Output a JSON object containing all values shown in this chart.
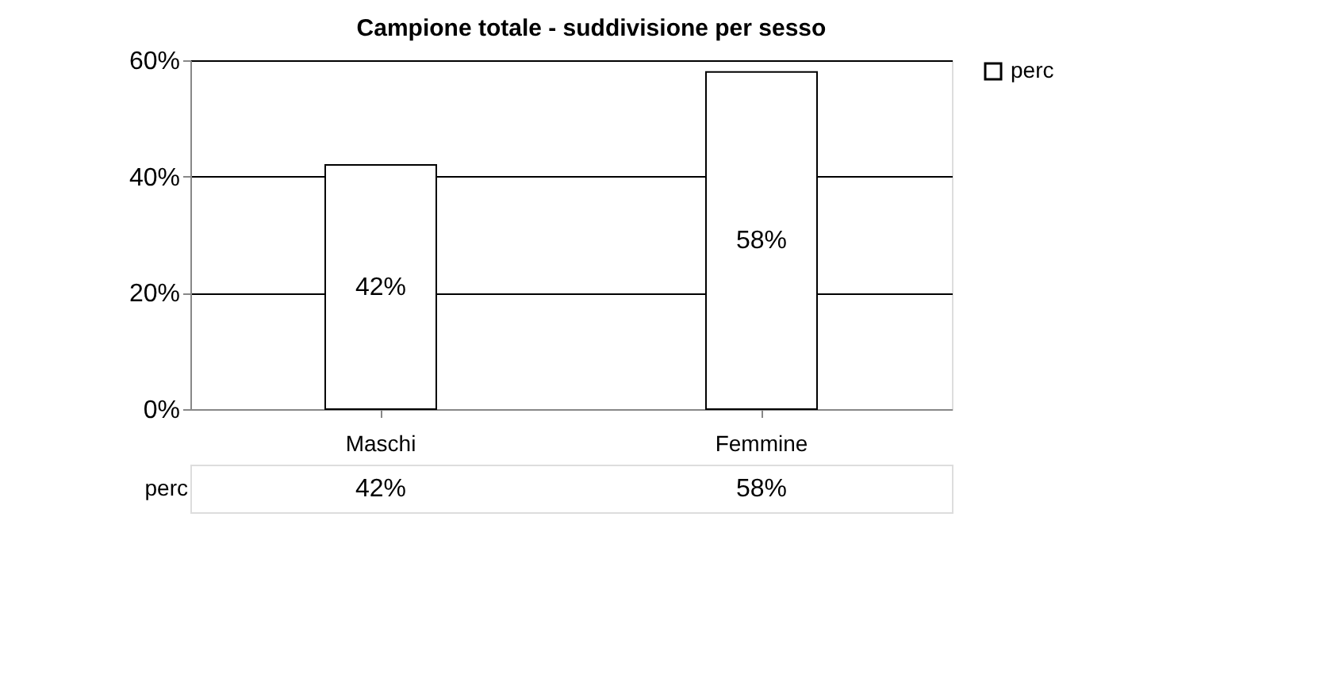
{
  "chart_data": {
    "type": "bar",
    "title": "Campione totale - suddivisione per sesso",
    "categories": [
      "Maschi",
      "Femmine"
    ],
    "series": [
      {
        "name": "perc",
        "color": "#ffffff",
        "values": [
          42,
          58
        ],
        "value_labels": [
          "42%",
          "58%"
        ]
      }
    ],
    "ylim": [
      0,
      60
    ],
    "yticks": [
      {
        "value": 0,
        "label": "0%"
      },
      {
        "value": 20,
        "label": "20%"
      },
      {
        "value": 40,
        "label": "40%"
      },
      {
        "value": 60,
        "label": "60%"
      }
    ],
    "grid": "y",
    "legend": "right"
  }
}
